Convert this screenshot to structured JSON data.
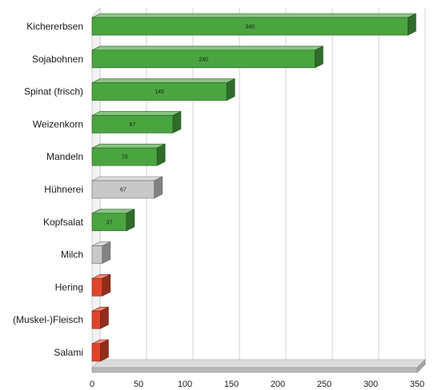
{
  "chart_data": {
    "type": "bar",
    "orientation": "horizontal",
    "title": "",
    "xlabel": "",
    "ylabel": "",
    "xlim": [
      0,
      350
    ],
    "xticks": [
      0,
      50,
      100,
      150,
      200,
      250,
      300,
      350
    ],
    "grid": true,
    "legend": "none",
    "categories": [
      "Kichererbsen",
      "Sojabohnen",
      "Spinat (frisch)",
      "Weizenkorn",
      "Mandeln",
      "Hühnerei",
      "Kopfsalat",
      "Milch",
      "Hering",
      "(Muskel-)Fleisch",
      "Salami"
    ],
    "values": [
      340,
      240,
      145,
      87,
      70,
      67,
      37,
      11,
      11,
      9,
      9
    ],
    "data_labels": [
      "340",
      "240",
      "145",
      "87",
      "70",
      "67",
      "37",
      "",
      "",
      "",
      ""
    ],
    "bar_colors": [
      "#4aa540",
      "#4aa540",
      "#4aa540",
      "#4aa540",
      "#4aa540",
      "#c8c8c8",
      "#4aa540",
      "#c8c8c8",
      "#e0452b",
      "#e0452b",
      "#e0452b"
    ]
  }
}
